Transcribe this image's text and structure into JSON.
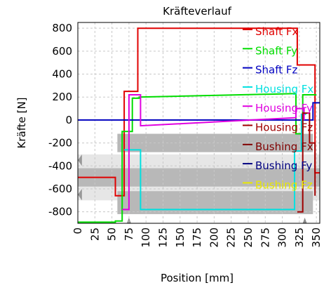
{
  "chart_data": {
    "type": "line",
    "title": "Kräfteverlauf",
    "xlabel": "Position [mm]",
    "ylabel": "Kräfte [N]",
    "xlim": [
      0,
      355
    ],
    "ylim": [
      -900,
      850
    ],
    "xticks": [
      0,
      25,
      50,
      75,
      100,
      125,
      150,
      175,
      200,
      225,
      250,
      275,
      300,
      325,
      350
    ],
    "yticks": [
      -800,
      -600,
      -400,
      -200,
      0,
      200,
      400,
      600,
      800
    ],
    "grid": true,
    "legend_position": "top-right",
    "series": [
      {
        "name": "Shaft Fx",
        "color": "#e00000",
        "points": [
          [
            0,
            -500
          ],
          [
            55,
            -500
          ],
          [
            55,
            -660
          ],
          [
            68,
            -660
          ],
          [
            68,
            250
          ],
          [
            88,
            250
          ],
          [
            88,
            800
          ],
          [
            322,
            800
          ],
          [
            322,
            480
          ],
          [
            348,
            480
          ],
          [
            348,
            -460
          ],
          [
            355,
            -460
          ]
        ]
      },
      {
        "name": "Shaft Fy",
        "color": "#00dd00",
        "points": [
          [
            0,
            -890
          ],
          [
            55,
            -890
          ],
          [
            55,
            -880
          ],
          [
            65,
            -880
          ],
          [
            65,
            -100
          ],
          [
            80,
            -100
          ],
          [
            80,
            190
          ],
          [
            90,
            190
          ],
          [
            90,
            200
          ],
          [
            320,
            230
          ],
          [
            320,
            -120
          ],
          [
            330,
            -120
          ],
          [
            330,
            220
          ],
          [
            350,
            220
          ]
        ]
      },
      {
        "name": "Shaft Fz",
        "color": "#0000c0",
        "points": [
          [
            0,
            0
          ],
          [
            345,
            0
          ],
          [
            345,
            150
          ],
          [
            355,
            150
          ]
        ]
      },
      {
        "name": "Housing Fx",
        "color": "#00e0e0",
        "points": [
          [
            68,
            -260
          ],
          [
            92,
            -260
          ],
          [
            92,
            -780
          ],
          [
            318,
            -780
          ],
          [
            318,
            -270
          ],
          [
            328,
            -270
          ],
          [
            328,
            50
          ],
          [
            335,
            50
          ]
        ]
      },
      {
        "name": "Housing Fy",
        "color": "#e000e0",
        "points": [
          [
            65,
            -780
          ],
          [
            75,
            -780
          ],
          [
            75,
            220
          ],
          [
            92,
            220
          ],
          [
            92,
            -50
          ],
          [
            320,
            20
          ],
          [
            320,
            100
          ],
          [
            332,
            100
          ],
          [
            332,
            0
          ]
        ]
      },
      {
        "name": "Housing Fz",
        "color": "#a00000",
        "points": [
          [
            322,
            -800
          ],
          [
            330,
            -800
          ],
          [
            330,
            60
          ],
          [
            340,
            60
          ],
          [
            340,
            -200
          ],
          [
            348,
            -200
          ],
          [
            348,
            -660
          ]
        ]
      },
      {
        "name": "Bushing Fx",
        "color": "#800000",
        "points": []
      },
      {
        "name": "Bushing Fy",
        "color": "#000080",
        "points": []
      },
      {
        "name": "Bushing Fz",
        "color": "#e8e800",
        "points": []
      }
    ]
  },
  "background_part": {
    "description_color": "#b8b8b8",
    "icons": [
      "shaft-section-icon"
    ]
  }
}
